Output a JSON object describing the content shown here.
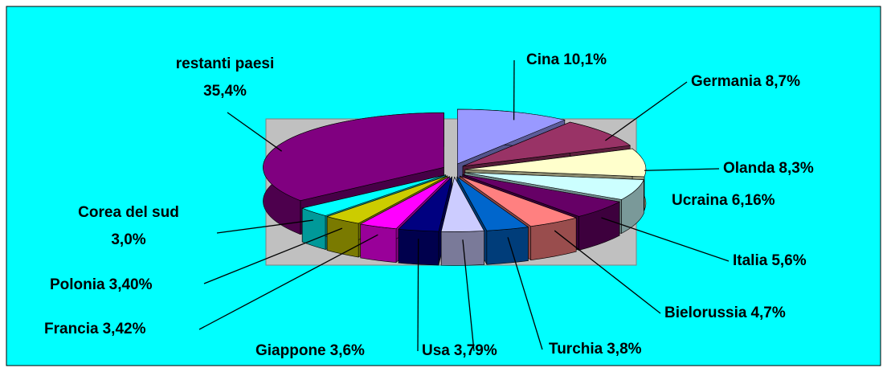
{
  "chart_data": {
    "type": "pie3d",
    "categories": [
      "Cina",
      "Germania",
      "Olanda",
      "Ucraina",
      "Italia",
      "Bielorussia",
      "Turchia",
      "Usa",
      "Giappone",
      "Francia",
      "Polonia",
      "Corea del sud",
      "restanti paesi"
    ],
    "values": [
      10.1,
      8.7,
      8.3,
      6.16,
      5.6,
      4.7,
      3.8,
      3.79,
      3.6,
      3.42,
      3.4,
      3.0,
      35.4
    ],
    "value_labels": [
      "10,1%",
      "8,7%",
      "8,3%",
      "6,16%",
      "5,6%",
      "4,7%",
      "3,8%",
      "3,79%",
      "3,6%",
      "3,42%",
      "3,40%",
      "3,0%",
      "35,4%"
    ],
    "colors": [
      "#9999ff",
      "#993366",
      "#ffffcc",
      "#ccffff",
      "#660066",
      "#ff8080",
      "#0066cc",
      "#ccccff",
      "#000080",
      "#ff00ff",
      "#cccc00",
      "#00ffff",
      "#800080"
    ]
  }
}
